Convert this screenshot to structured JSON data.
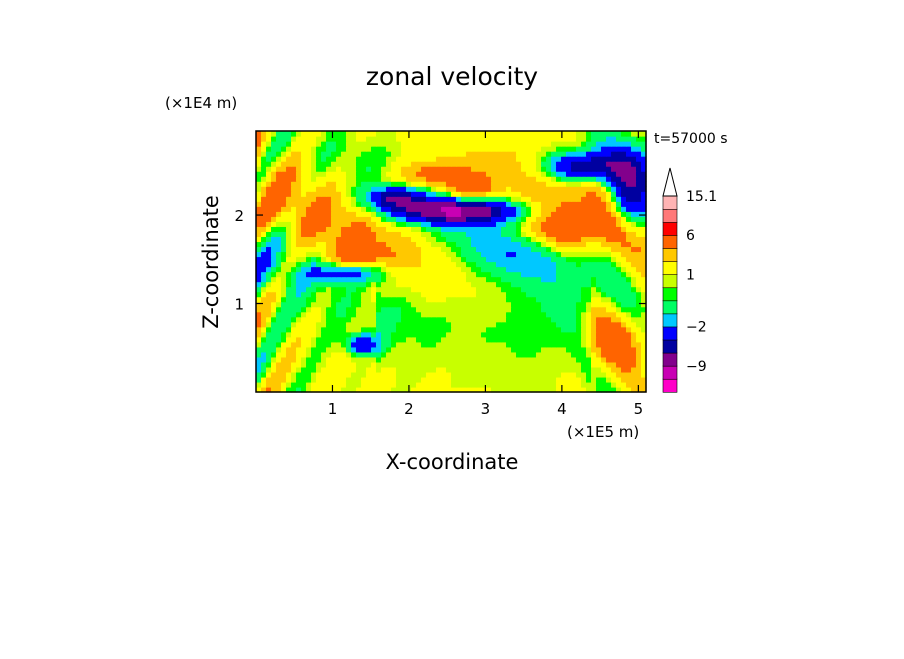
{
  "chart_data": {
    "type": "heatmap",
    "title": "zonal velocity",
    "xlabel": "X-coordinate",
    "ylabel": "Z-coordinate",
    "x_scale_label": "(×1E5 m)",
    "y_scale_label": "(×1E4 m)",
    "time_label": "t=57000 s",
    "xlim": [
      0,
      5.1
    ],
    "ylim": [
      0,
      2.95
    ],
    "x_ticks": [
      "1",
      "2",
      "3",
      "4",
      "5"
    ],
    "x_tick_values": [
      1,
      2,
      3,
      4,
      5
    ],
    "y_ticks": [
      "1",
      "2"
    ],
    "y_tick_values": [
      1,
      2
    ],
    "colorbar": {
      "labels": [
        "15.1",
        "6",
        "1",
        "−2",
        "−9"
      ],
      "label_values": [
        15.1,
        6,
        1,
        -2,
        -9
      ],
      "levels": [
        {
          "lo": -15,
          "hi": -12,
          "color": "#ff00c8"
        },
        {
          "lo": -12,
          "hi": -9,
          "color": "#c800b4"
        },
        {
          "lo": -9,
          "hi": -6,
          "color": "#82008c"
        },
        {
          "lo": -6,
          "hi": -4,
          "color": "#0000a0"
        },
        {
          "lo": -4,
          "hi": -2,
          "color": "#0000ff"
        },
        {
          "lo": -2,
          "hi": -1,
          "color": "#00c8ff"
        },
        {
          "lo": -1,
          "hi": 0,
          "color": "#00ff64"
        },
        {
          "lo": 0,
          "hi": 0.5,
          "color": "#00ff00"
        },
        {
          "lo": 0.5,
          "hi": 1,
          "color": "#c8ff00"
        },
        {
          "lo": 1,
          "hi": 2,
          "color": "#ffff00"
        },
        {
          "lo": 2,
          "hi": 3,
          "color": "#ffc800"
        },
        {
          "lo": 3,
          "hi": 6,
          "color": "#ff6400"
        },
        {
          "lo": 6,
          "hi": 9,
          "color": "#ff0000"
        },
        {
          "lo": 9,
          "hi": 12,
          "color": "#ff7878"
        },
        {
          "lo": 12,
          "hi": 15.1,
          "color": "#ffb4b4"
        }
      ],
      "overflow_color": "#ffffff"
    }
  }
}
